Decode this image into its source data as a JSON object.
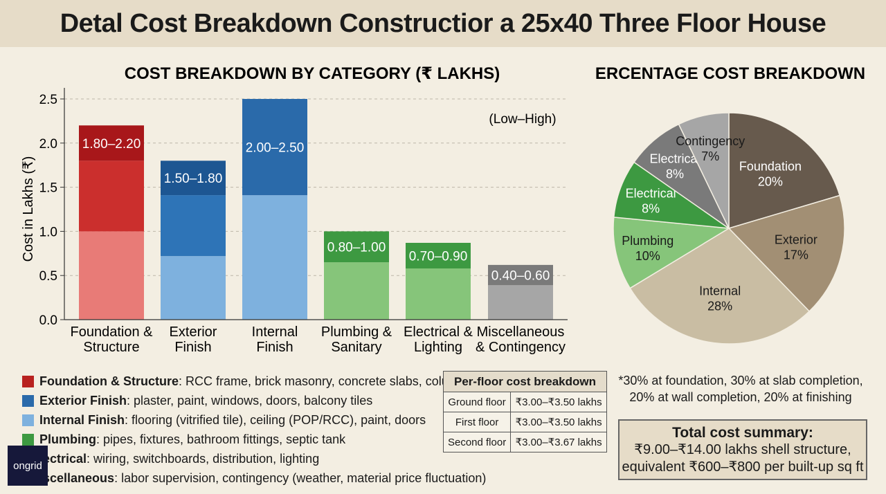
{
  "page_title": "Detal Cost Breakdown Constructior a 25x40 Three Floor House",
  "chart_data": [
    {
      "type": "bar",
      "title": "COST BREAKDOWN BY CATEGORY (₹ LAKHS)",
      "ylabel": "Cost in Lakhs (₹)",
      "annotation": "(Low–High)",
      "ylim": [
        0,
        2.5
      ],
      "yticks": [
        "0.0",
        "0.5",
        "1.0",
        "1.5",
        "2.0",
        "2.5"
      ],
      "grid": "horizontal-dashed",
      "categories": [
        {
          "line1": "Foundation &",
          "line2": "Structure"
        },
        {
          "line1": "Exterior",
          "line2": "Finish"
        },
        {
          "line1": "Internal",
          "line2": "Finish"
        },
        {
          "line1": "Plumbing &",
          "line2": "Sanitary"
        },
        {
          "line1": "Electrical &",
          "line2": "Lighting"
        },
        {
          "line1": "Miscellaneous",
          "line2": "& Contingency"
        }
      ],
      "bars": [
        {
          "segments": [
            1.0,
            1.8,
            2.2
          ],
          "low": 1.8,
          "high": 2.2,
          "label": "1.80–2.20",
          "colors": [
            "#e87b77",
            "#cb2f2d",
            "#a8171a"
          ]
        },
        {
          "segments": [
            0.72,
            1.41,
            1.8
          ],
          "low": 1.5,
          "high": 1.8,
          "label": "1.50–1.80",
          "colors": [
            "#7eb1de",
            "#2e74b7",
            "#1d5692"
          ]
        },
        {
          "segments": [
            1.41,
            2.5
          ],
          "low": 2.0,
          "high": 2.5,
          "label": "2.00–2.50",
          "colors": [
            "#7eb1de",
            "#2a6aaa"
          ]
        },
        {
          "segments": [
            0.65,
            1.0
          ],
          "low": 0.8,
          "high": 1.0,
          "label": "0.80–1.00",
          "colors": [
            "#86c57a",
            "#3d9941"
          ]
        },
        {
          "segments": [
            0.58,
            0.87
          ],
          "low": 0.7,
          "high": 0.9,
          "label": "0.70–0.90",
          "colors": [
            "#86c57a",
            "#3d9941"
          ]
        },
        {
          "segments": [
            0.39,
            0.62
          ],
          "low": 0.4,
          "high": 0.6,
          "label": "0.40–0.60",
          "colors": [
            "#a6a6a6",
            "#7a7a7a"
          ]
        }
      ]
    },
    {
      "type": "pie",
      "title": "PERCENTAGE COST BREAKDOWN",
      "slices": [
        {
          "name": "Foundation",
          "value": 20,
          "label": "20%",
          "color": "#675a4d",
          "text_color": "#ffffff"
        },
        {
          "name": "Exterior",
          "value": 17,
          "label": "17%",
          "color": "#a28f74",
          "text_color": "#1a1a1a"
        },
        {
          "name": "Internal",
          "value": 28,
          "label": "28%",
          "color": "#c9bda3",
          "text_color": "#1a1a1a"
        },
        {
          "name": "Plumbing",
          "value": 10,
          "label": "10%",
          "color": "#86c57a",
          "text_color": "#1a1a1a"
        },
        {
          "name": "Electrical",
          "value": 8,
          "label": "8%",
          "color": "#3d9941",
          "text_color": "#ffffff"
        },
        {
          "name": "Electrical",
          "value": 8,
          "label": "8%",
          "color": "#7a7a7a",
          "text_color": "#ffffff"
        },
        {
          "name": "Contingency",
          "value": 7,
          "label": "7%",
          "color": "#a6a6a6",
          "text_color": "#1a1a1a"
        }
      ]
    }
  ],
  "legend": [
    {
      "name": "Foundation & Structure",
      "desc": ": RCC frame, brick masonry, concrete slabs, columns",
      "color": "#b8211f"
    },
    {
      "name": "Exterior Finish",
      "desc": ": plaster, paint, windows, doors, balcony tiles",
      "color": "#2a6aaa"
    },
    {
      "name": "Internal Finish",
      "desc": ": flooring (vitrified tile), ceiling (POP/RCC), paint, doors",
      "color": "#7eb1de"
    },
    {
      "name": "Plumbing",
      "desc": ": pipes, fixtures, bathroom fittings, septic tank",
      "color": "#3d9941"
    },
    {
      "name": "lectrical",
      "desc": ": wiring, switchboards, distribution, lighting",
      "color": "#86c57a"
    },
    {
      "name": "iscellaneous",
      "desc": ": labor supervision, contingency (weather, material price fluctuation)",
      "color": "#a6a6a6"
    }
  ],
  "floor_table": {
    "header": "Per-floor cost breakdown",
    "rows": [
      {
        "floor": "Ground floor",
        "cost": "₹3.00–₹3.50 lakhs"
      },
      {
        "floor": "First floor",
        "cost": "₹3.00–₹3.50 lakhs"
      },
      {
        "floor": "Second floor",
        "cost": "₹3.00–₹3.67 lakhs"
      }
    ]
  },
  "payment_note": {
    "line1": "*30% at foundation, 30% at slab completion,",
    "line2": "20% at wall completion, 20% at finishing"
  },
  "summary": {
    "title": "Total cost summary:",
    "line1": "₹9.00–₹14.00 lakhs shell structure,",
    "line2": "equivalent ₹600–₹800 per built-up sq ft"
  },
  "logo_text": "ongrid"
}
